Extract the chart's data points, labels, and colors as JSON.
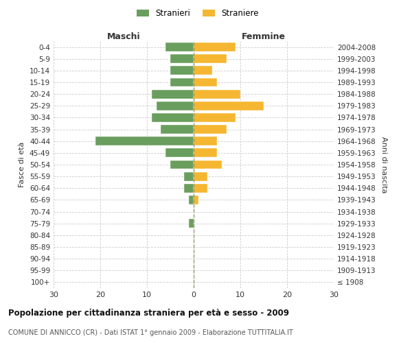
{
  "age_groups": [
    "100+",
    "95-99",
    "90-94",
    "85-89",
    "80-84",
    "75-79",
    "70-74",
    "65-69",
    "60-64",
    "55-59",
    "50-54",
    "45-49",
    "40-44",
    "35-39",
    "30-34",
    "25-29",
    "20-24",
    "15-19",
    "10-14",
    "5-9",
    "0-4"
  ],
  "birth_years": [
    "≤ 1908",
    "1909-1913",
    "1914-1918",
    "1919-1923",
    "1924-1928",
    "1929-1933",
    "1934-1938",
    "1939-1943",
    "1944-1948",
    "1949-1953",
    "1954-1958",
    "1959-1963",
    "1964-1968",
    "1969-1973",
    "1974-1978",
    "1979-1983",
    "1984-1988",
    "1989-1993",
    "1994-1998",
    "1999-2003",
    "2004-2008"
  ],
  "maschi": [
    0,
    0,
    0,
    0,
    0,
    1,
    0,
    1,
    2,
    2,
    5,
    6,
    21,
    7,
    9,
    8,
    9,
    5,
    5,
    5,
    6
  ],
  "femmine": [
    0,
    0,
    0,
    0,
    0,
    0,
    0,
    1,
    3,
    3,
    6,
    5,
    5,
    7,
    9,
    15,
    10,
    5,
    4,
    7,
    9
  ],
  "color_maschi": "#6a9e5e",
  "color_femmine": "#f5b731",
  "title": "Popolazione per cittadinanza straniera per età e sesso - 2009",
  "subtitle": "COMUNE DI ANNICCO (CR) - Dati ISTAT 1° gennaio 2009 - Elaborazione TUTTITALIA.IT",
  "xlabel_left": "Maschi",
  "xlabel_right": "Femmine",
  "ylabel_left": "Fasce di età",
  "ylabel_right": "Anni di nascita",
  "legend_maschi": "Stranieri",
  "legend_femmine": "Straniere",
  "xlim": 30,
  "background_color": "#ffffff",
  "grid_color": "#cccccc"
}
